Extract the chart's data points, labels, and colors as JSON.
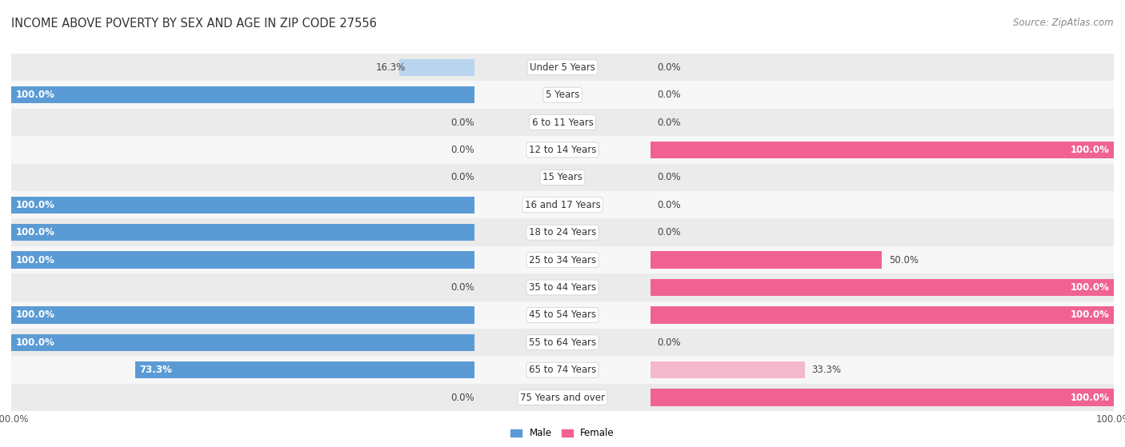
{
  "title": "INCOME ABOVE POVERTY BY SEX AND AGE IN ZIP CODE 27556",
  "source": "Source: ZipAtlas.com",
  "categories": [
    "Under 5 Years",
    "5 Years",
    "6 to 11 Years",
    "12 to 14 Years",
    "15 Years",
    "16 and 17 Years",
    "18 to 24 Years",
    "25 to 34 Years",
    "35 to 44 Years",
    "45 to 54 Years",
    "55 to 64 Years",
    "65 to 74 Years",
    "75 Years and over"
  ],
  "male": [
    16.3,
    100.0,
    0.0,
    0.0,
    0.0,
    100.0,
    100.0,
    100.0,
    0.0,
    100.0,
    100.0,
    73.3,
    0.0
  ],
  "female": [
    0.0,
    0.0,
    0.0,
    100.0,
    0.0,
    0.0,
    0.0,
    50.0,
    100.0,
    100.0,
    0.0,
    33.3,
    100.0
  ],
  "male_color_full": "#5b9bd5",
  "male_color_light": "#b8d4ee",
  "female_color_full": "#f06292",
  "female_color_light": "#f4b8cc",
  "row_bg_dark": "#ebebeb",
  "row_bg_light": "#f7f7f7",
  "title_fontsize": 10.5,
  "label_fontsize": 8.5,
  "tick_fontsize": 8.5,
  "source_fontsize": 8.5
}
